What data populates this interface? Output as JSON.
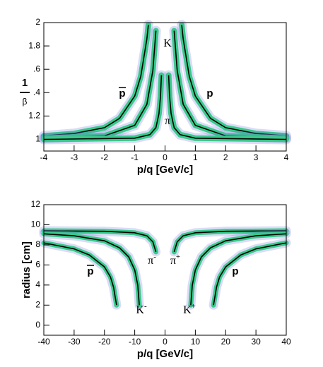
{
  "chart_data": [
    {
      "type": "line",
      "xlabel": "p/q  [GeV/c]",
      "ylabel_top": "1",
      "ylabel_bottom": "β",
      "xlim": [
        -4,
        4
      ],
      "xticks": [
        -4,
        -3,
        -2,
        -1,
        0,
        1,
        2,
        3,
        4
      ],
      "ylim": [
        0.9,
        2
      ],
      "yticks": [
        1,
        1.2,
        {
          "value": 1.4,
          "label": ".4"
        },
        {
          "value": 1.6,
          "label": ".6"
        },
        1.8,
        2
      ],
      "annotations": [
        {
          "text": "K"
        },
        {
          "text": "p",
          "bar": true,
          "bold": true
        },
        {
          "text": "p",
          "bold": true
        },
        {
          "text": "π"
        }
      ],
      "series": [
        {
          "x": [
            0.55,
            0.6,
            0.8,
            1,
            1.5,
            2,
            3,
            4
          ],
          "y": [
            1.98,
            1.86,
            1.54,
            1.37,
            1.18,
            1.1,
            1.05,
            1.03
          ]
        },
        {
          "x": [
            -0.55,
            -0.6,
            -0.8,
            -1,
            -1.5,
            -2,
            -3,
            -4
          ],
          "y": [
            1.98,
            1.86,
            1.54,
            1.37,
            1.18,
            1.1,
            1.05,
            1.03
          ]
        },
        {
          "x": [
            0.3,
            0.4,
            0.6,
            1,
            2,
            4
          ],
          "y": [
            1.93,
            1.59,
            1.3,
            1.12,
            1.03,
            1.01
          ]
        },
        {
          "x": [
            -0.3,
            -0.4,
            -0.6,
            -1,
            -2,
            -4
          ],
          "y": [
            1.93,
            1.59,
            1.3,
            1.12,
            1.03,
            1.01
          ]
        },
        {
          "x": [
            0.12,
            0.15,
            0.2,
            0.3,
            0.5,
            1,
            4
          ],
          "y": [
            1.55,
            1.37,
            1.22,
            1.1,
            1.04,
            1.01,
            1
          ]
        },
        {
          "x": [
            -0.12,
            -0.15,
            -0.2,
            -0.3,
            -0.5,
            -1,
            -4
          ],
          "y": [
            1.55,
            1.37,
            1.22,
            1.1,
            1.04,
            1.01,
            1
          ]
        }
      ]
    },
    {
      "type": "line",
      "xlabel": "p/q  [GeV/c]",
      "ylabel": "radius [cm]",
      "xlim": [
        -40,
        40
      ],
      "xticks": [
        -40,
        -30,
        -20,
        -10,
        0,
        10,
        20,
        30,
        40
      ],
      "ylim": [
        -1,
        12
      ],
      "yticks": [
        0,
        2,
        4,
        6,
        8,
        10,
        12
      ],
      "annotations": [
        {
          "text": "p",
          "bar": true,
          "bold": true
        },
        {
          "text": "π",
          "sup": "-"
        },
        {
          "text": "π",
          "sup": "+"
        },
        {
          "text": "K",
          "sup": "-"
        },
        {
          "text": "K",
          "sup": "+"
        },
        {
          "text": "p",
          "bold": true
        }
      ],
      "series": [
        {
          "x": [
            3,
            4,
            6,
            10,
            20,
            40
          ],
          "y": [
            7.3,
            8.3,
            8.9,
            9.2,
            9.35,
            9.4
          ]
        },
        {
          "x": [
            -3,
            -4,
            -6,
            -10,
            -20,
            -40
          ],
          "y": [
            7.3,
            8.3,
            8.9,
            9.2,
            9.35,
            9.4
          ]
        },
        {
          "x": [
            8.5,
            9,
            10,
            12,
            15,
            20,
            30,
            40
          ],
          "y": [
            2,
            4,
            5.5,
            6.8,
            7.7,
            8.4,
            8.9,
            9.1
          ]
        },
        {
          "x": [
            -8.5,
            -9,
            -10,
            -12,
            -15,
            -20,
            -30,
            -40
          ],
          "y": [
            2,
            4,
            5.5,
            6.8,
            7.7,
            8.4,
            8.9,
            9.1
          ]
        },
        {
          "x": [
            16,
            17,
            18,
            20,
            25,
            30,
            40
          ],
          "y": [
            2,
            3.8,
            4.8,
            5.8,
            7,
            7.6,
            8.2
          ]
        },
        {
          "x": [
            -16,
            -17,
            -18,
            -20,
            -25,
            -30,
            -40
          ],
          "y": [
            2,
            3.8,
            4.8,
            5.8,
            7,
            7.6,
            8.2
          ]
        }
      ]
    }
  ]
}
